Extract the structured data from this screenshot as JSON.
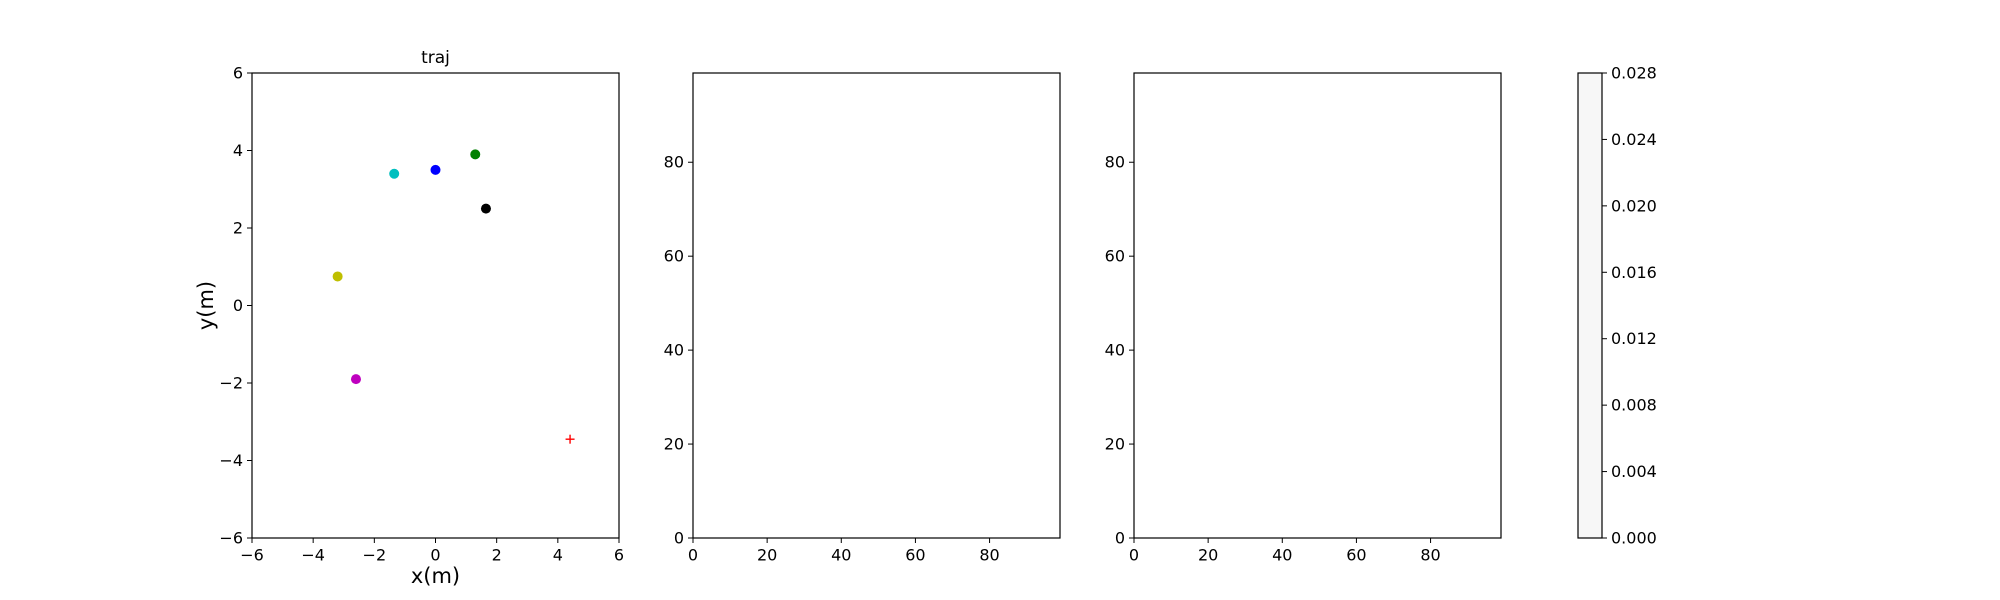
{
  "chart_data": [
    {
      "type": "scatter",
      "title": "traj",
      "xlabel": "x(m)",
      "ylabel": "y(m)",
      "xlim": [
        -6,
        6
      ],
      "ylim": [
        -6,
        6
      ],
      "xticks": [
        -6,
        -4,
        -2,
        0,
        2,
        4,
        6
      ],
      "yticks": [
        -6,
        -4,
        -2,
        0,
        2,
        4,
        6
      ],
      "grid": false,
      "series": [
        {
          "x": 0.0,
          "y": 3.5,
          "color": "#0000ff",
          "marker": "circle"
        },
        {
          "x": 1.3,
          "y": 3.9,
          "color": "#008000",
          "marker": "circle"
        },
        {
          "x": -1.35,
          "y": 3.4,
          "color": "#00bfbf",
          "marker": "circle"
        },
        {
          "x": 1.65,
          "y": 2.5,
          "color": "#000000",
          "marker": "circle"
        },
        {
          "x": -3.2,
          "y": 0.75,
          "color": "#bfbf00",
          "marker": "circle"
        },
        {
          "x": -2.6,
          "y": -1.9,
          "color": "#bf00bf",
          "marker": "circle"
        },
        {
          "x": 4.4,
          "y": -3.45,
          "color": "#ff0000",
          "marker": "plus"
        }
      ]
    },
    {
      "type": "heatmap",
      "xlim": [
        0,
        99
      ],
      "ylim": [
        0,
        99
      ],
      "xticks": [
        0,
        20,
        40,
        60,
        80
      ],
      "yticks": [
        0,
        20,
        40,
        60,
        80
      ],
      "grid": false,
      "empty": true
    },
    {
      "type": "heatmap",
      "xlim": [
        0,
        99
      ],
      "ylim": [
        0,
        99
      ],
      "xticks": [
        0,
        20,
        40,
        60,
        80
      ],
      "yticks": [
        0,
        20,
        40,
        60,
        80
      ],
      "grid": false,
      "empty": true
    },
    {
      "type": "colorbar",
      "range": [
        0,
        0.028
      ],
      "ticks": [
        "0.000",
        "0.004",
        "0.008",
        "0.012",
        "0.016",
        "0.020",
        "0.024",
        "0.028"
      ],
      "fill_color": "#f7f7f7"
    }
  ]
}
